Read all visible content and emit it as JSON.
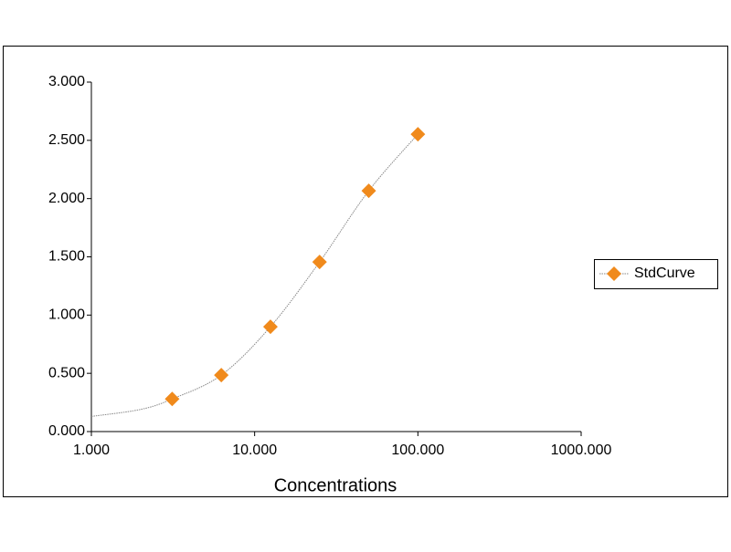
{
  "chart_data": {
    "type": "scatter",
    "xlabel": "Concentrations",
    "xscale": "log",
    "xlim": [
      1,
      1000
    ],
    "xticks": [
      {
        "value": 1,
        "label": "1.000"
      },
      {
        "value": 10,
        "label": "10.000"
      },
      {
        "value": 100,
        "label": "100.000"
      },
      {
        "value": 1000,
        "label": "1000.000"
      }
    ],
    "ylim": [
      0,
      3
    ],
    "yticks": [
      {
        "value": 0,
        "label": "0.000"
      },
      {
        "value": 0.5,
        "label": "0.500"
      },
      {
        "value": 1,
        "label": "1.000"
      },
      {
        "value": 1.5,
        "label": "1.500"
      },
      {
        "value": 2,
        "label": "2.000"
      },
      {
        "value": 2.5,
        "label": "2.500"
      },
      {
        "value": 3,
        "label": "3.000"
      }
    ],
    "grid": false,
    "legend": "right",
    "series": [
      {
        "name": "StdCurve",
        "color": "#f08a1c",
        "x": [
          3.125,
          6.25,
          12.5,
          25,
          50,
          100
        ],
        "values": [
          0.28,
          0.485,
          0.9,
          1.456,
          2.067,
          2.553
        ]
      }
    ],
    "trendline": {
      "color": "#888888",
      "x": [
        1,
        2,
        3.125,
        6.25,
        12.5,
        25,
        50,
        100
      ],
      "values": [
        0.13,
        0.19,
        0.28,
        0.485,
        0.9,
        1.456,
        2.067,
        2.553
      ]
    }
  }
}
